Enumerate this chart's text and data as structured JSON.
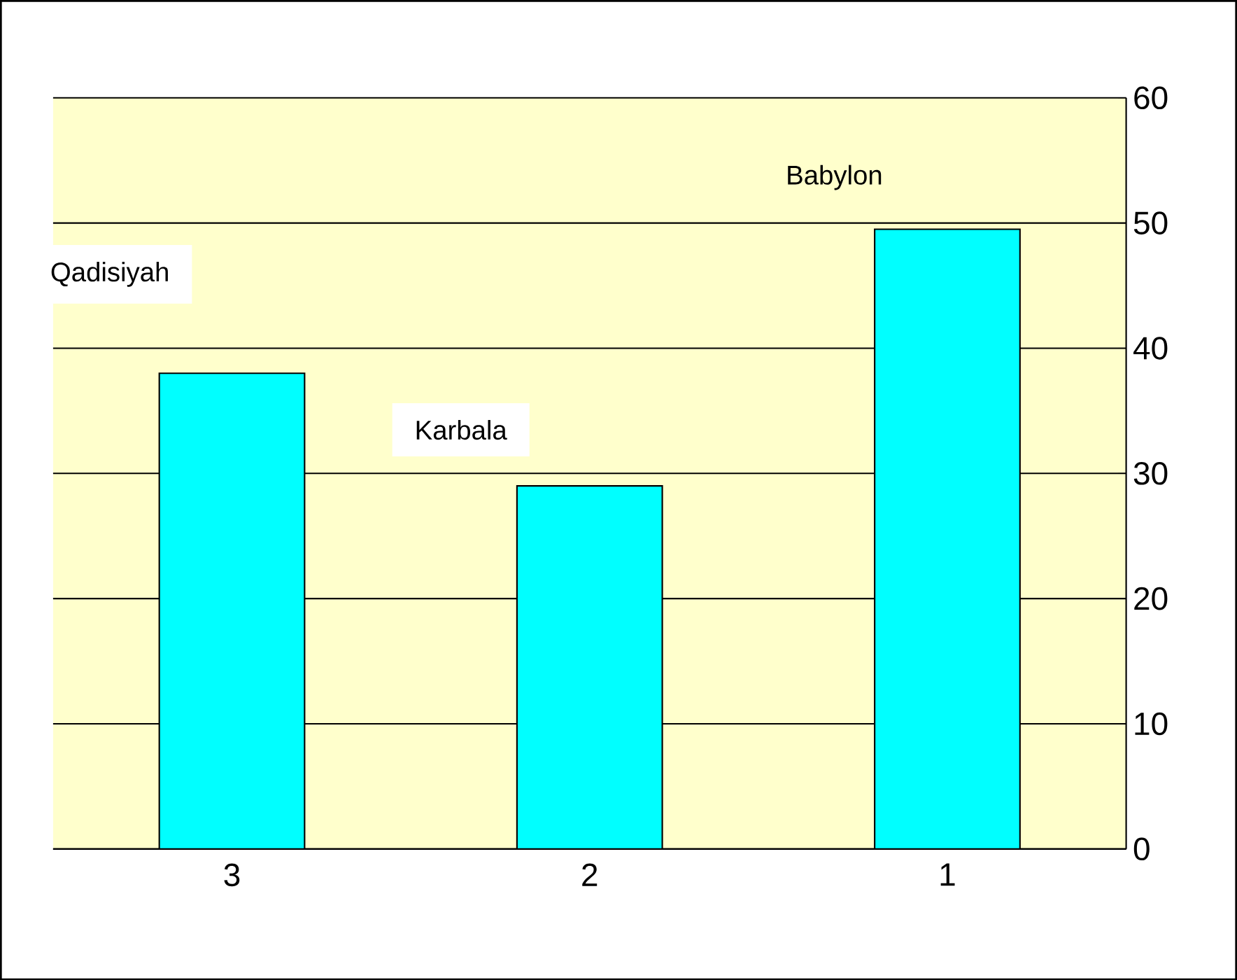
{
  "chart_data": {
    "type": "bar",
    "categories": [
      "3",
      "2",
      "1"
    ],
    "values": [
      38,
      29,
      49.5
    ],
    "color": "#00ffff",
    "ylim": [
      0,
      60
    ],
    "yticks": [
      0,
      10,
      20,
      30,
      40,
      50,
      60
    ],
    "grid": "y",
    "annotations": [
      "Qadisiyah",
      "Karbala",
      "Babylon"
    ]
  }
}
